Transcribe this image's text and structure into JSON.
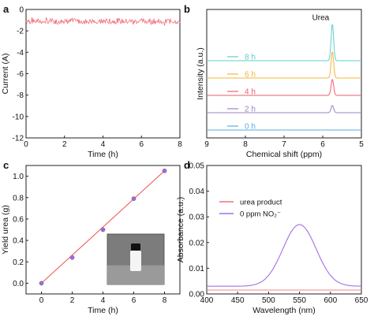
{
  "chart_data": [
    {
      "panel": "a",
      "type": "line",
      "xlabel": "Time (h)",
      "ylabel": "Current (A)",
      "xlim": [
        0,
        8
      ],
      "ylim": [
        -12,
        0
      ],
      "xticks": [
        "0",
        "2",
        "4",
        "6",
        "8"
      ],
      "yticks": [
        "0",
        "-2",
        "-4",
        "-6",
        "-8",
        "-10",
        "-12"
      ],
      "line_color": "#f0707a",
      "series": [
        {
          "x_range": [
            0,
            8
          ],
          "y_mean": -1.1,
          "y_min": -1.5,
          "y_max": -0.7
        }
      ]
    },
    {
      "panel": "b",
      "type": "line",
      "xlabel": "Chemical shift (ppm)",
      "ylabel": "Intensity (a.u.)",
      "xlim": [
        9,
        5
      ],
      "xticks": [
        "9",
        "8",
        "7",
        "6",
        "5"
      ],
      "annotation": "Urea",
      "peak_ppm": 5.75,
      "series": [
        {
          "name": "0 h",
          "color": "#5aaee6",
          "peak_height": 0.0
        },
        {
          "name": "2 h",
          "color": "#9e82c8",
          "peak_height": 0.25
        },
        {
          "name": "4 h",
          "color": "#ee5e6e",
          "peak_height": 0.55
        },
        {
          "name": "6 h",
          "color": "#f2b43c",
          "peak_height": 0.9
        },
        {
          "name": "8 h",
          "color": "#5ad0cc",
          "peak_height": 1.25
        }
      ]
    },
    {
      "panel": "c",
      "type": "scatter",
      "xlabel": "Time (h)",
      "ylabel": "Yield urea (g)",
      "xlim": [
        -1,
        9
      ],
      "ylim": [
        -0.1,
        1.1
      ],
      "xticks": [
        "0",
        "2",
        "4",
        "6",
        "8"
      ],
      "yticks": [
        "0.0",
        "0.2",
        "0.4",
        "0.6",
        "0.8",
        "1.0"
      ],
      "marker_color": "#9b6fd6",
      "line_color": "#f05050",
      "x": [
        0,
        2,
        4,
        6,
        8
      ],
      "y": [
        0.0,
        0.24,
        0.5,
        0.79,
        1.05
      ],
      "inset": "photo of vial"
    },
    {
      "panel": "d",
      "type": "line",
      "xlabel": "Wavelength (nm)",
      "ylabel": "Absorbance (a.u.)",
      "xlim": [
        400,
        650
      ],
      "ylim": [
        0,
        0.05
      ],
      "xticks": [
        "400",
        "450",
        "500",
        "550",
        "600",
        "650"
      ],
      "yticks": [
        "0.00",
        "0.01",
        "0.02",
        "0.03",
        "0.04",
        "0.05"
      ],
      "legend": [
        "urea product",
        "0 ppm NO₂⁻"
      ],
      "legend_position": "upper-left",
      "series": [
        {
          "name": "urea product",
          "color": "#f0707a"
        },
        {
          "name": "0 ppm NO₂⁻",
          "color": "#a070e0",
          "peak_x": 550,
          "peak_y": 0.027
        }
      ]
    }
  ],
  "panel_labels": [
    "a",
    "b",
    "c",
    "d"
  ]
}
